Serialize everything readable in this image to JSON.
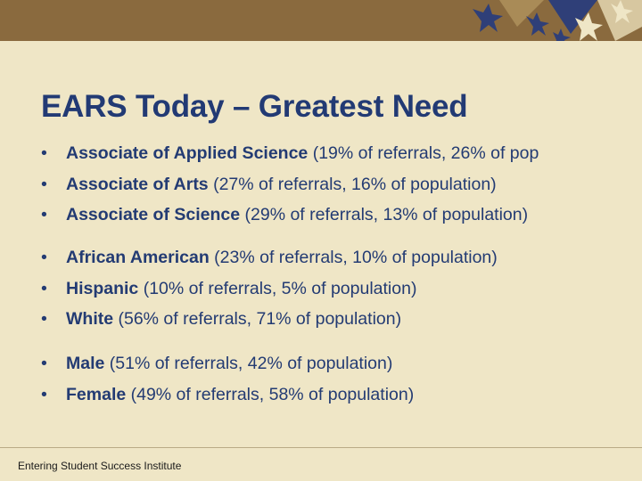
{
  "slide": {
    "title": "EARS Today – Greatest Need",
    "bullet_symbol": "•",
    "groups": [
      [
        {
          "bold": "Associate of Applied Science",
          "rest": " (19% of referrals, 26% of pop"
        },
        {
          "bold": "Associate of Arts",
          "rest": " (27% of referrals, 16% of population)"
        },
        {
          "bold": "Associate of Science",
          "rest": " (29% of referrals, 13% of population)"
        }
      ],
      [
        {
          "bold": "African American",
          "rest": " (23% of referrals, 10% of population)"
        },
        {
          "bold": "Hispanic",
          "rest": " (10% of referrals, 5% of population)"
        },
        {
          "bold": "White",
          "rest": " (56% of referrals, 71% of population)"
        }
      ],
      [
        {
          "bold": "Male",
          "rest": " (51% of referrals, 42% of population)"
        },
        {
          "bold": "Female",
          "rest": " (49% of referrals, 58% of population)"
        }
      ]
    ],
    "footer": "Entering Student Success Institute"
  },
  "colors": {
    "background": "#efe6c6",
    "top_bar": "#8a6a3e",
    "title": "#223a74",
    "text": "#233b73"
  }
}
